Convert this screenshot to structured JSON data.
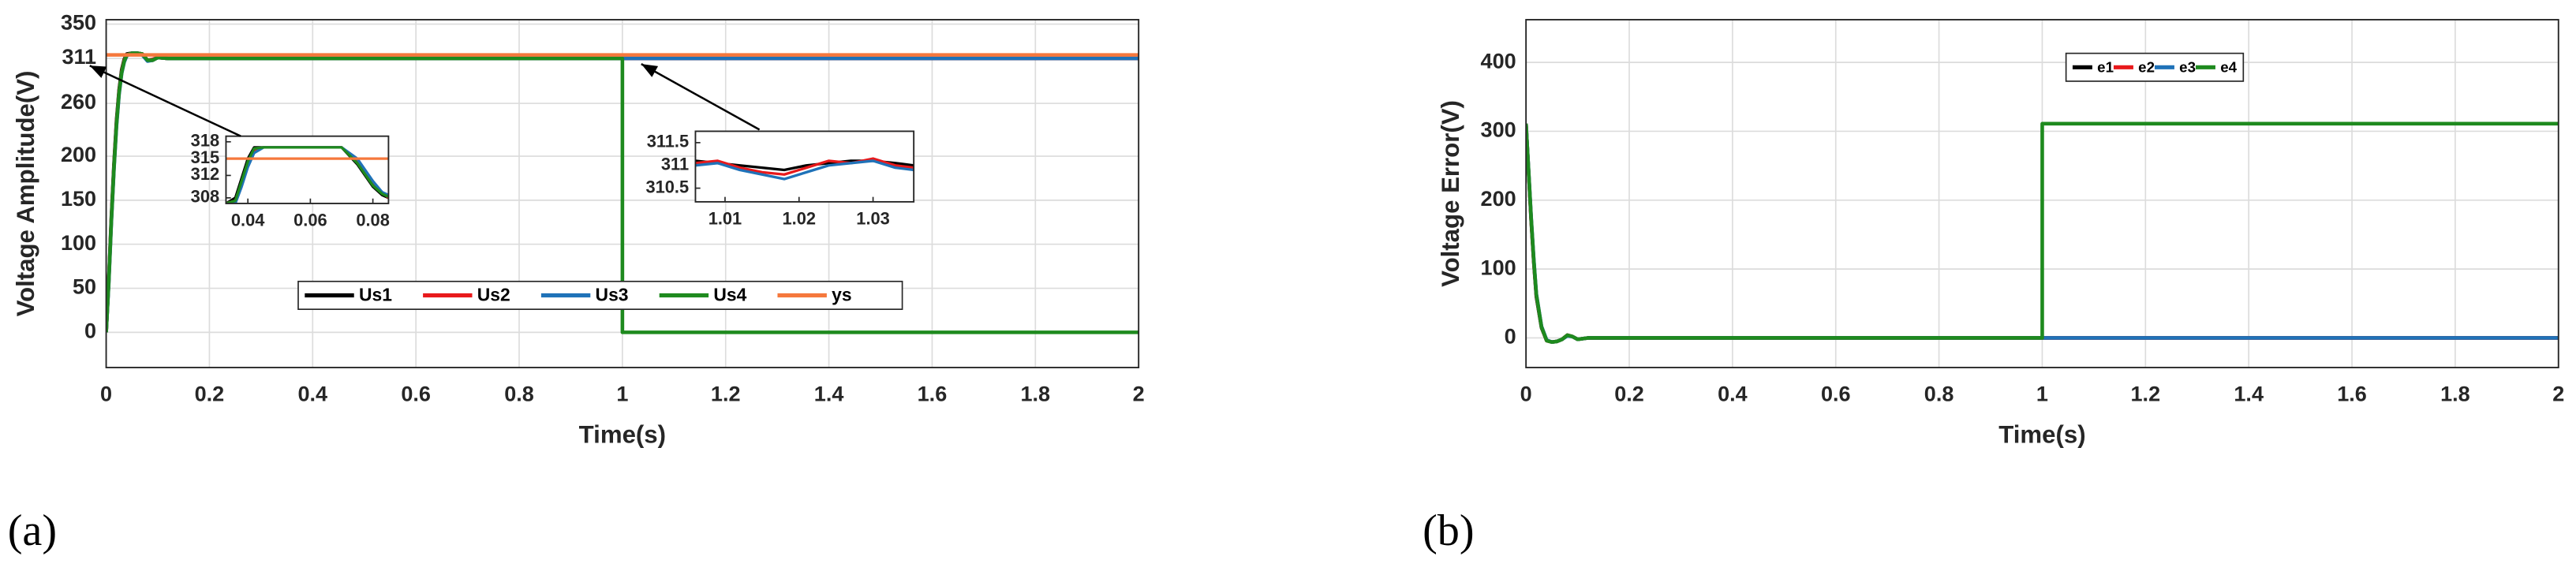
{
  "chart_data": [
    {
      "type": "line",
      "label": "(a)",
      "xlabel": "Time(s)",
      "ylabel": "Voltage Amplitude(V)",
      "grid": true,
      "legend": "lower center",
      "xlim": [
        0,
        2
      ],
      "xticks": [
        0,
        0.2,
        0.4,
        0.6,
        0.8,
        1,
        1.2,
        1.4,
        1.6,
        1.8,
        2
      ],
      "ylim": [
        -40,
        355
      ],
      "yticks": [
        0,
        50,
        100,
        150,
        200,
        260,
        311,
        350
      ],
      "x": [
        0,
        0.005,
        0.01,
        0.015,
        0.02,
        0.025,
        0.03,
        0.035,
        0.04,
        0.05,
        0.06,
        0.07,
        0.08,
        0.09,
        0.1,
        0.12,
        0.15,
        0.2,
        0.5,
        1,
        1,
        1.5,
        2
      ],
      "series": [
        {
          "name": "Us1",
          "color": "#000000",
          "values": [
            0,
            60,
            130,
            190,
            240,
            275,
            298,
            310,
            316,
            317,
            317,
            316,
            309,
            309,
            312,
            311,
            311,
            311,
            311,
            311,
            311,
            311,
            311
          ]
        },
        {
          "name": "Us2",
          "color": "#e8191b",
          "values": [
            0,
            58,
            127,
            187,
            237,
            273,
            296,
            309,
            315,
            317,
            317,
            316,
            309,
            310,
            312,
            311,
            311,
            311,
            311,
            311,
            311,
            311,
            311
          ]
        },
        {
          "name": "Us3",
          "color": "#1f72b8",
          "values": [
            0,
            55,
            124,
            184,
            234,
            270,
            294,
            307,
            314,
            317,
            317,
            315,
            308,
            309,
            312,
            311,
            311,
            311,
            311,
            311,
            311,
            311,
            311
          ]
        },
        {
          "name": "Us4",
          "color": "#1e8a1e",
          "values": [
            0,
            57,
            126,
            186,
            236,
            272,
            295,
            308,
            315,
            317,
            317,
            316,
            309,
            309,
            312,
            311,
            311,
            311,
            311,
            311,
            0,
            0,
            0
          ]
        },
        {
          "name": "ys",
          "color": "#f5783c",
          "values": [
            315,
            315,
            315,
            315,
            315,
            315,
            315,
            315,
            315,
            315,
            315,
            315,
            315,
            315,
            315,
            315,
            315,
            315,
            315,
            315,
            315,
            315,
            315
          ]
        }
      ]
    },
    {
      "type": "line",
      "xlim": [
        0.033,
        0.085
      ],
      "xticks": [
        0.04,
        0.06,
        0.08
      ],
      "ylim": [
        307,
        319
      ],
      "yticks": [
        308,
        312,
        315,
        318
      ],
      "x": [
        0.033,
        0.036,
        0.038,
        0.04,
        0.042,
        0.045,
        0.05,
        0.06,
        0.07,
        0.075,
        0.08,
        0.083,
        0.085
      ],
      "series": [
        {
          "color": "#000000",
          "values": [
            307,
            308,
            311.5,
            315,
            317,
            317,
            317,
            317,
            317,
            314,
            310,
            308.5,
            308
          ]
        },
        {
          "color": "#e8191b",
          "values": [
            307,
            307.5,
            310.5,
            314,
            316.5,
            317,
            317,
            317,
            317,
            314.5,
            310.5,
            309,
            308
          ]
        },
        {
          "color": "#1f72b8",
          "values": [
            307,
            307,
            310,
            313.5,
            316,
            317,
            317,
            317,
            317,
            315,
            311,
            309,
            308.5
          ]
        },
        {
          "color": "#1e8a1e",
          "values": [
            307,
            307.5,
            311,
            314.5,
            316.8,
            317,
            317,
            317,
            317,
            314.2,
            310.2,
            308.7,
            308.2
          ]
        },
        {
          "color": "#f5783c",
          "values": [
            315,
            315,
            315,
            315,
            315,
            315,
            315,
            315,
            315,
            315,
            315,
            315,
            315
          ]
        }
      ]
    },
    {
      "type": "line",
      "xlim": [
        1.006,
        1.0355
      ],
      "xticks": [
        1.01,
        1.02,
        1.03
      ],
      "ylim": [
        310.2,
        311.75
      ],
      "yticks": [
        310.5,
        311,
        311.5
      ],
      "x": [
        1.006,
        1.009,
        1.012,
        1.015,
        1.018,
        1.021,
        1.024,
        1.027,
        1.03,
        1.033,
        1.0355
      ],
      "series": [
        {
          "color": "#000000",
          "values": [
            311.1,
            311.05,
            311.0,
            310.95,
            310.9,
            311.0,
            311.05,
            311.1,
            311.1,
            311.05,
            311.0
          ]
        },
        {
          "color": "#e8191b",
          "values": [
            311.05,
            311.1,
            310.95,
            310.85,
            310.8,
            310.95,
            311.1,
            311.05,
            311.15,
            311.0,
            310.95
          ]
        },
        {
          "color": "#1f72b8",
          "values": [
            311.0,
            311.05,
            310.9,
            310.8,
            310.7,
            310.85,
            311.0,
            311.05,
            311.1,
            310.95,
            310.9
          ]
        }
      ]
    },
    {
      "type": "line",
      "label": "(b)",
      "xlabel": "Time(s)",
      "ylabel": "Voltage Error(V)",
      "grid": true,
      "legend": "upper right",
      "xlim": [
        0,
        2
      ],
      "xticks": [
        0,
        0.2,
        0.4,
        0.6,
        0.8,
        1,
        1.2,
        1.4,
        1.6,
        1.8,
        2
      ],
      "ylim": [
        -43,
        462
      ],
      "yticks": [
        0,
        100,
        200,
        300,
        400
      ],
      "x": [
        0,
        0.005,
        0.01,
        0.015,
        0.02,
        0.03,
        0.04,
        0.05,
        0.06,
        0.07,
        0.08,
        0.09,
        0.1,
        0.12,
        0.15,
        1,
        1,
        1.5,
        2
      ],
      "series": [
        {
          "name": "e1",
          "color": "#000000",
          "values": [
            311,
            240,
            170,
            110,
            60,
            15,
            -4,
            -6,
            -5,
            -2,
            4,
            2,
            -2,
            0,
            0,
            0,
            0,
            0,
            0
          ]
        },
        {
          "name": "e2",
          "color": "#e8191b",
          "values": [
            311,
            242,
            172,
            112,
            62,
            16,
            -4,
            -6,
            -5,
            -2,
            4,
            2,
            -2,
            0,
            0,
            0,
            0,
            0,
            0
          ]
        },
        {
          "name": "e3",
          "color": "#1f72b8",
          "values": [
            311,
            244,
            175,
            115,
            64,
            17,
            -3,
            -6,
            -5,
            -2,
            3,
            2,
            -2,
            0,
            0,
            0,
            0,
            0,
            0
          ]
        },
        {
          "name": "e4",
          "color": "#1e8a1e",
          "values": [
            311,
            243,
            174,
            113,
            63,
            16,
            -4,
            -6,
            -5,
            -2,
            4,
            2,
            -2,
            0,
            0,
            0,
            311,
            311,
            311
          ]
        }
      ]
    }
  ]
}
